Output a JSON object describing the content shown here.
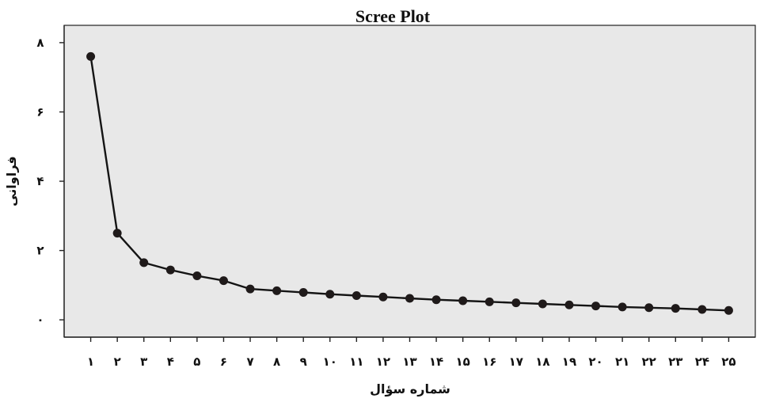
{
  "chart_data": {
    "type": "line",
    "title": "Scree Plot",
    "xlabel": "شماره سؤال",
    "ylabel": "فراوانی",
    "x": [
      1,
      2,
      3,
      4,
      5,
      6,
      7,
      8,
      9,
      10,
      11,
      12,
      13,
      14,
      15,
      16,
      17,
      18,
      19,
      20,
      21,
      22,
      23,
      24,
      25
    ],
    "x_tick_labels": [
      "١",
      "٢",
      "٣",
      "۴",
      "۵",
      "۶",
      "٧",
      "٨",
      "٩",
      "١٠",
      "١١",
      "١٢",
      "١٣",
      "١۴",
      "١۵",
      "١۶",
      "١٧",
      "١٨",
      "١٩",
      "٢٠",
      "٢١",
      "٢٢",
      "٢٣",
      "٢۴",
      "٢۵"
    ],
    "values": [
      7.6,
      2.5,
      1.65,
      1.44,
      1.27,
      1.13,
      0.89,
      0.84,
      0.79,
      0.74,
      0.7,
      0.66,
      0.62,
      0.58,
      0.55,
      0.52,
      0.49,
      0.46,
      0.43,
      0.4,
      0.37,
      0.35,
      0.33,
      0.3,
      0.27
    ],
    "y_ticks": [
      0,
      2,
      4,
      6,
      8
    ],
    "y_tick_labels": [
      "٠",
      "٢",
      "۴",
      "۶",
      "٨"
    ],
    "xlim": [
      0,
      26
    ],
    "ylim": [
      -0.5,
      8.5
    ],
    "grid": false,
    "plot_background": "#e8e8e8",
    "line_color": "#141414",
    "marker_color": "#1f1a1a"
  }
}
